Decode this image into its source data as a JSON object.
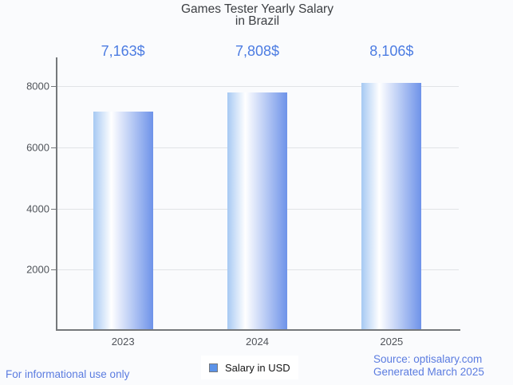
{
  "title": {
    "line1": "Games Tester Yearly Salary",
    "line2": "in Brazil"
  },
  "chart_data": {
    "type": "bar",
    "title": "Games Tester Yearly Salary in Brazil",
    "categories": [
      "2023",
      "2024",
      "2025"
    ],
    "series": [
      {
        "name": "Salary in USD",
        "values": [
          7163,
          7808,
          8106
        ]
      }
    ],
    "value_labels": [
      "7,163$",
      "7,808$",
      "8,106$"
    ],
    "xlabel": "",
    "ylabel": "",
    "y_ticks": [
      2000,
      4000,
      6000,
      8000
    ],
    "ylim": [
      0,
      8900
    ],
    "grid": true,
    "legend_position": "bottom"
  },
  "legend": {
    "label": "Salary in USD",
    "swatch_color": "#5b92e8"
  },
  "footer": {
    "disclaimer": "For informational use only",
    "source": "Source: optisalary.com",
    "generated": "Generated March 2025"
  },
  "colors": {
    "accent_blue": "#4c7ce2",
    "footer_blue": "#5b7ce0",
    "bar_gradient_left": "#a6c9f3",
    "bar_gradient_highlight": "#ffffff",
    "bar_gradient_right": "#6e93e9",
    "axis": "#75787b",
    "gridline": "#e1e3e6",
    "background": "#fafbfd",
    "title_text": "#3c3f43",
    "tick_text": "#50545a"
  }
}
